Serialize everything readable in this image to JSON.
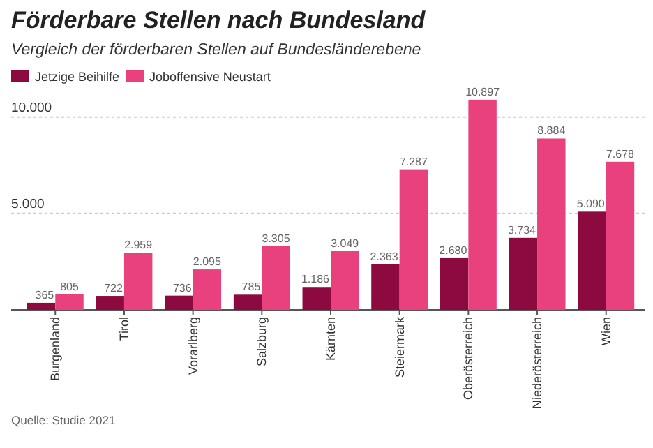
{
  "chart_data": {
    "type": "bar",
    "title": "Förderbare Stellen nach Bundesland",
    "subtitle": "Vergleich der förderbaren Stellen auf Bundesländerebene",
    "categories": [
      "Burgenland",
      "Tirol",
      "Vorarlberg",
      "Salzburg",
      "Kärnten",
      "Steiermark",
      "Oberösterreich",
      "Niederösterreich",
      "Wien"
    ],
    "series": [
      {
        "name": "Jetzige Beihilfe",
        "color": "#8c0a40",
        "values": [
          365,
          722,
          736,
          785,
          1186,
          2363,
          2680,
          3734,
          5090
        ],
        "value_labels": [
          "365",
          "722",
          "736",
          "785",
          "1.186",
          "2.363",
          "2.680",
          "3.734",
          "5.090"
        ]
      },
      {
        "name": "Joboffensive Neustart",
        "color": "#e8417e",
        "values": [
          805,
          2959,
          2095,
          3305,
          3049,
          7287,
          10897,
          8884,
          7678
        ],
        "value_labels": [
          "805",
          "2.959",
          "2.095",
          "3.305",
          "3.049",
          "7.287",
          "10.897",
          "8.884",
          "7.678"
        ]
      }
    ],
    "ylim": [
      0,
      11000
    ],
    "yticks": [
      {
        "value": 0,
        "label": null
      },
      {
        "value": 5000,
        "label": "5.000"
      },
      {
        "value": 10000,
        "label": "10.000"
      }
    ],
    "grid": "y",
    "legend": "top left",
    "annotations": [
      "Quelle: Studie 2021"
    ]
  }
}
